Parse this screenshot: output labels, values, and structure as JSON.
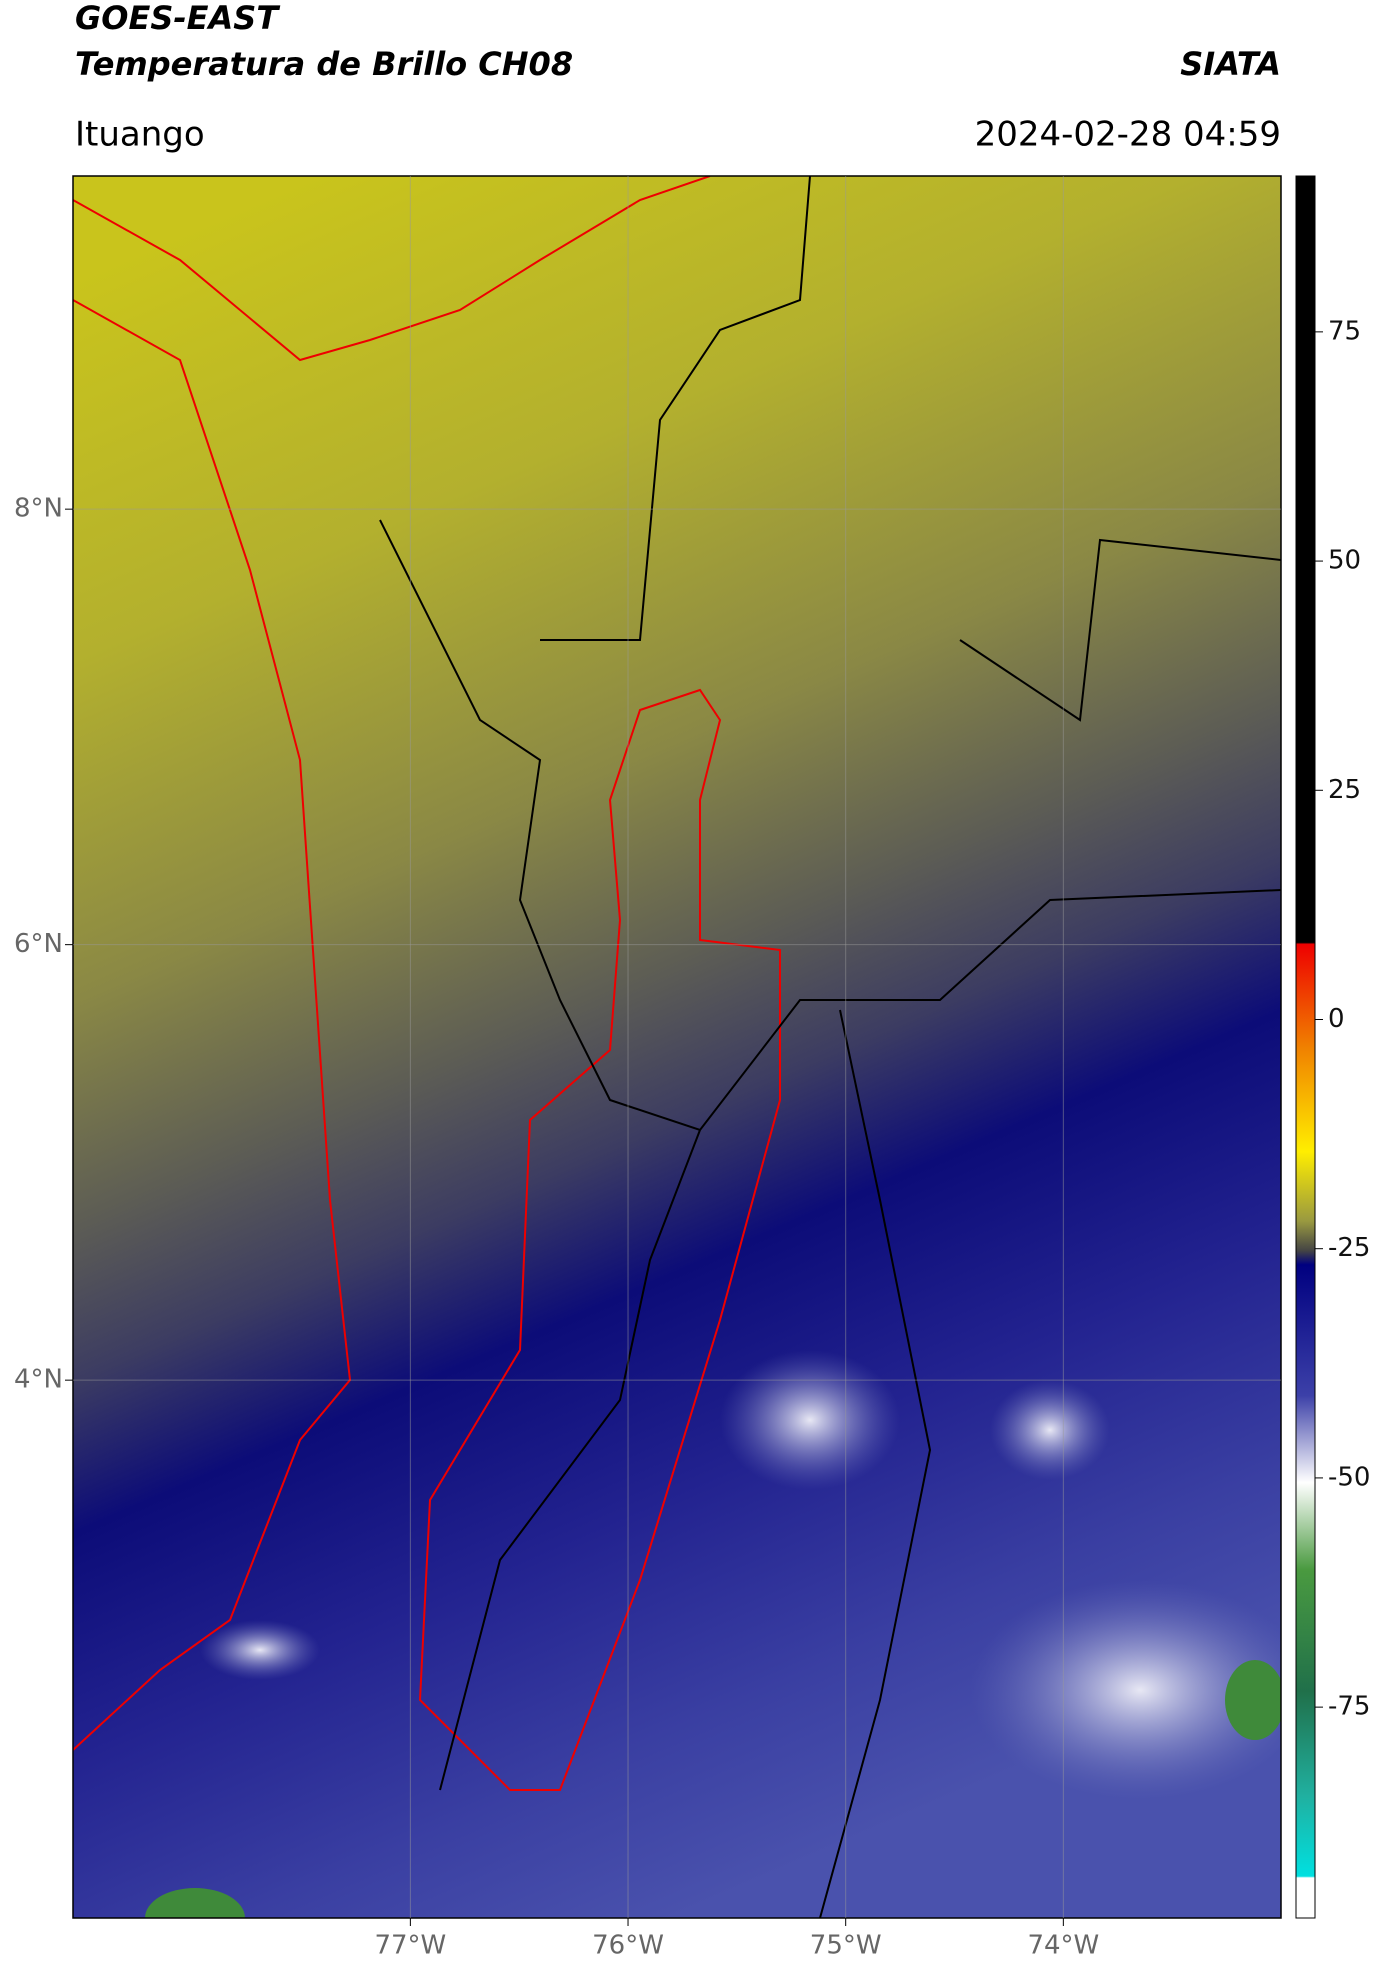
{
  "chart_data": {
    "type": "map",
    "title": "GOES-EAST",
    "subtitle": "Temperatura de Brillo CH08",
    "source": "SIATA",
    "location": "Ituango",
    "datetime": "2024-02-28 04:59",
    "xlim": [
      -78.55,
      -73.0
    ],
    "ylim": [
      1.53,
      9.53
    ],
    "xticks": [
      {
        "value": -77,
        "label": "77°W"
      },
      {
        "value": -76,
        "label": "76°W"
      },
      {
        "value": -75,
        "label": "75°W"
      },
      {
        "value": -74,
        "label": "74°W"
      }
    ],
    "yticks": [
      {
        "value": 4,
        "label": "4°N"
      },
      {
        "value": 6,
        "label": "6°N"
      },
      {
        "value": 8,
        "label": "8°N"
      }
    ],
    "grid": true,
    "colorbar": {
      "lim": [
        -98,
        92
      ],
      "ticks": [
        75,
        50,
        25,
        0,
        -25,
        -50,
        -75
      ]
    }
  }
}
